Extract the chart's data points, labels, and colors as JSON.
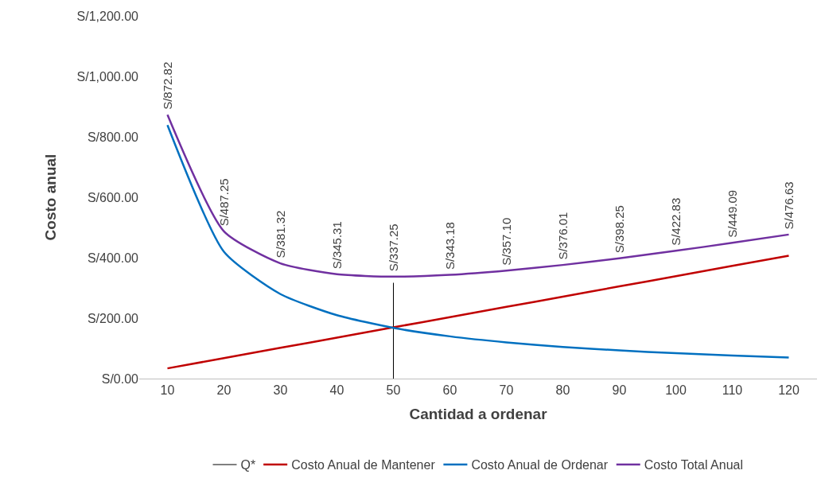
{
  "chart_data": {
    "type": "line",
    "xlabel": "Cantidad a ordenar",
    "ylabel": "Costo anual",
    "x": [
      10,
      20,
      30,
      40,
      50,
      60,
      70,
      80,
      90,
      100,
      110,
      120
    ],
    "xlim": [
      5,
      125
    ],
    "xticks": [
      10,
      20,
      30,
      40,
      50,
      60,
      70,
      80,
      90,
      100,
      110,
      120
    ],
    "ylim": [
      0,
      1200
    ],
    "yticks": [
      {
        "value": 0,
        "label": "S/0.00"
      },
      {
        "value": 200,
        "label": "S/200.00"
      },
      {
        "value": 400,
        "label": "S/400.00"
      },
      {
        "value": 600,
        "label": "S/600.00"
      },
      {
        "value": 800,
        "label": "S/800.00"
      },
      {
        "value": 1000,
        "label": "S/1,000.00"
      },
      {
        "value": 1200,
        "label": "S/1,200.00"
      }
    ],
    "grid": false,
    "legend": "bottom",
    "marker": "none",
    "line_style": "solid",
    "series": [
      {
        "name": "Q*",
        "color": "#000000",
        "x": [
          50,
          50
        ],
        "values": [
          0,
          317
        ]
      },
      {
        "name": "Costo Anual de Mantener",
        "color": "#c00000",
        "values": [
          33.9,
          67.8,
          101.7,
          135.6,
          169.5,
          203.4,
          237.3,
          271.1,
          305.0,
          338.9,
          372.8,
          406.7
        ]
      },
      {
        "name": "Costo Anual de Ordenar",
        "color": "#0070c0",
        "values": [
          838.9,
          419.5,
          279.6,
          209.7,
          167.8,
          139.8,
          119.8,
          104.9,
          93.2,
          83.9,
          76.3,
          69.9
        ]
      },
      {
        "name": "Costo Total Anual",
        "color": "#7030a0",
        "values": [
          872.82,
          487.25,
          381.32,
          345.31,
          337.25,
          343.18,
          357.1,
          376.01,
          398.25,
          422.83,
          449.09,
          476.63
        ],
        "value_labels": [
          "S/872.82",
          "S/487.25",
          "S/381.32",
          "S/345.31",
          "S/337.25",
          "S/343.18",
          "S/357.10",
          "S/376.01",
          "S/398.25",
          "S/422.83",
          "S/449.09",
          "S/476.63"
        ]
      }
    ]
  }
}
